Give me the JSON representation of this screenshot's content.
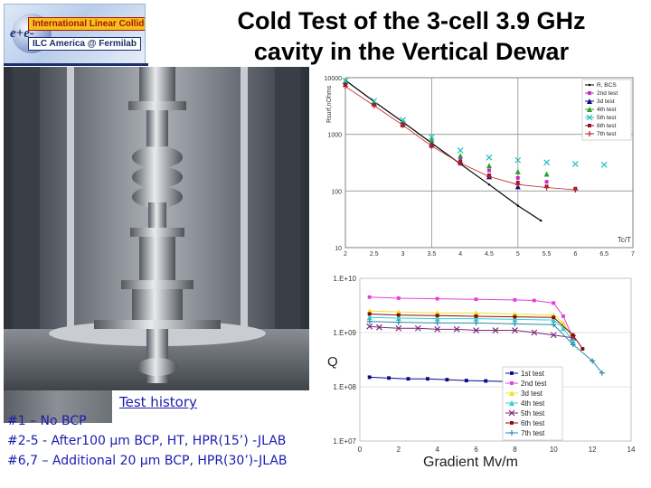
{
  "logo": {
    "line1": "International Linear Collider",
    "line2": "ILC America @ Fermilab",
    "prefix": "e+e-"
  },
  "title": {
    "line1": "Cold Test of the 3-cell 3.9 GHz",
    "line2": "cavity in the Vertical Dewar"
  },
  "history": {
    "title": "Test history",
    "lines": [
      "#1 – No BCP",
      "#2-5 - After100 μm BCP, HT, HPR(15’) -JLAB",
      "#6,7 – Additional 20 μm BCP, HPR(30’)-JLAB"
    ]
  },
  "chart_data": [
    {
      "type": "scatter",
      "title": "",
      "xlabel": "Tc/T",
      "ylabel": "Rsurf,nOhms",
      "yscale": "log",
      "xlim": [
        2,
        7
      ],
      "ylim": [
        10,
        10000
      ],
      "x_ticks": [
        "2",
        "2.5",
        "3",
        "3.5",
        "4",
        "4.5",
        "5",
        "5.5",
        "6",
        "6.5",
        "7"
      ],
      "y_ticks": [
        "10000",
        "1000",
        "100",
        "10"
      ],
      "legend_position": "top-right",
      "series": [
        {
          "name": "R, BCS",
          "color": "#000000",
          "x": [
            2.0,
            2.5,
            3.0,
            3.5,
            4.0,
            4.5,
            5.0,
            5.4
          ],
          "y": [
            9000,
            3800,
            1650,
            700,
            300,
            130,
            55,
            30
          ]
        },
        {
          "name": "2nd test",
          "color": "#d020d0",
          "x": [
            2.0,
            2.5,
            3.0,
            3.5,
            4.0,
            4.5,
            5.0,
            5.5
          ],
          "y": [
            8000,
            3500,
            1600,
            700,
            380,
            230,
            170,
            145
          ]
        },
        {
          "name": "3d test",
          "color": "#0a0a8a",
          "x": [
            2.0,
            2.5,
            3.0,
            3.5,
            4.0,
            4.5,
            5.0
          ],
          "y": [
            8500,
            3600,
            1500,
            650,
            320,
            180,
            120
          ]
        },
        {
          "name": "4th test",
          "color": "#2aa02a",
          "x": [
            2.0,
            2.5,
            3.0,
            3.5,
            4.0,
            4.5,
            5.0,
            5.5
          ],
          "y": [
            8500,
            3600,
            1700,
            800,
            420,
            280,
            220,
            200
          ]
        },
        {
          "name": "5th test",
          "color": "#20c0c0",
          "x": [
            2.0,
            2.5,
            3.0,
            3.5,
            4.0,
            4.5,
            5.0,
            5.5,
            6.0,
            6.5
          ],
          "y": [
            8800,
            3900,
            1800,
            900,
            520,
            390,
            350,
            320,
            300,
            290
          ]
        },
        {
          "name": "6th test",
          "color": "#8a0a2a",
          "x": [
            2.0,
            2.5,
            3.0,
            3.5,
            4.0,
            4.5,
            5.0,
            5.5,
            6.0
          ],
          "y": [
            7500,
            3300,
            1500,
            650,
            330,
            190,
            140,
            120,
            110
          ]
        },
        {
          "name": "7th test",
          "color": "#c02020",
          "x": [
            2.0,
            2.5,
            3.0,
            3.5,
            4.0,
            4.5,
            5.0,
            5.5,
            6.0
          ],
          "y": [
            7000,
            3200,
            1450,
            620,
            310,
            180,
            130,
            115,
            105
          ]
        }
      ]
    },
    {
      "type": "line",
      "title": "",
      "xlabel": "Gradient Mv/m",
      "ylabel": "Q",
      "yscale": "log",
      "xlim": [
        0,
        14
      ],
      "ylim": [
        10000000,
        10000000000
      ],
      "x_ticks": [
        "0",
        "2",
        "4",
        "6",
        "8",
        "10",
        "12",
        "14"
      ],
      "y_ticks": [
        "1.E+10",
        "1.E+09",
        "1.E+08",
        "1.E+07"
      ],
      "legend_position": "bottom-right",
      "series": [
        {
          "name": "1st test",
          "color": "#0a0a8a",
          "x": [
            0.5,
            1.5,
            2.5,
            3.5,
            4.5,
            5.5,
            6.5,
            7.5
          ],
          "y": [
            150000000,
            145000000,
            140000000,
            140000000,
            135000000,
            130000000,
            128000000,
            125000000
          ]
        },
        {
          "name": "2nd test",
          "color": "#e040e0",
          "x": [
            0.5,
            2,
            4,
            6,
            8,
            9,
            10,
            10.5,
            11
          ],
          "y": [
            4500000000,
            4300000000,
            4200000000,
            4100000000,
            4000000000,
            3900000000,
            3500000000,
            2000000000,
            800000000
          ]
        },
        {
          "name": "3d test",
          "color": "#f0e020",
          "x": [
            0.5,
            2,
            4,
            6,
            8,
            10,
            10.5,
            11
          ],
          "y": [
            2500000000,
            2400000000,
            2300000000,
            2300000000,
            2200000000,
            2100000000,
            1500000000,
            800000000
          ]
        },
        {
          "name": "4th test",
          "color": "#30d0d0",
          "x": [
            0.5,
            2,
            4,
            6,
            8,
            10,
            10.5,
            11
          ],
          "y": [
            1900000000,
            1850000000,
            1800000000,
            1800000000,
            1750000000,
            1700000000,
            1200000000,
            700000000
          ]
        },
        {
          "name": "5th test",
          "color": "#7a2a7a",
          "x": [
            0.5,
            1,
            2,
            3,
            4,
            5,
            6,
            7,
            8,
            9,
            10,
            11
          ],
          "y": [
            1300000000,
            1250000000,
            1200000000,
            1200000000,
            1150000000,
            1150000000,
            1100000000,
            1100000000,
            1100000000,
            1000000000,
            900000000,
            800000000
          ]
        },
        {
          "name": "6th test",
          "color": "#8a0a0a",
          "x": [
            0.5,
            2,
            4,
            6,
            8,
            10,
            11,
            11.5
          ],
          "y": [
            2200000000,
            2100000000,
            2050000000,
            2000000000,
            1950000000,
            1900000000,
            900000000,
            500000000
          ]
        },
        {
          "name": "7th test",
          "color": "#2a8aa8",
          "x": [
            0.5,
            2,
            4,
            6,
            8,
            10,
            11,
            12,
            12.5
          ],
          "y": [
            1600000000,
            1550000000,
            1500000000,
            1500000000,
            1450000000,
            1400000000,
            600000000,
            300000000,
            180000000
          ]
        }
      ]
    }
  ]
}
